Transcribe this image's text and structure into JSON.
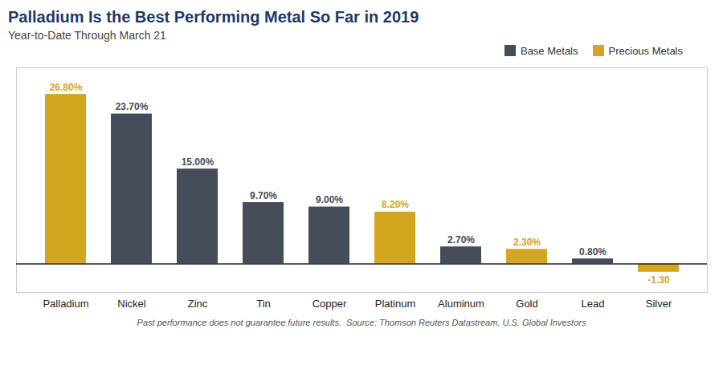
{
  "chart_data": {
    "type": "bar",
    "title": "Palladium Is the Best Performing Metal So Far in 2019",
    "subtitle": "Year-to-Date Through March 21",
    "categories": [
      "Palladium",
      "Nickel",
      "Zinc",
      "Tin",
      "Copper",
      "Platinum",
      "Aluminum",
      "Gold",
      "Lead",
      "Silver"
    ],
    "series": [
      {
        "name": "Base Metals",
        "color": "#464D5A",
        "values": [
          null,
          23.7,
          15.0,
          9.7,
          9.0,
          null,
          2.7,
          null,
          0.8,
          null
        ],
        "value_labels": [
          null,
          "23.70%",
          "15.00%",
          "9.70%",
          "9.00%",
          null,
          "2.70%",
          null,
          "0.80%",
          null
        ]
      },
      {
        "name": "Precious Metals",
        "color": "#D4A51E",
        "values": [
          26.8,
          null,
          null,
          null,
          null,
          8.2,
          null,
          2.3,
          null,
          -1.3
        ],
        "value_labels": [
          "26.80%",
          null,
          null,
          null,
          null,
          "8.20%",
          null,
          "2.30%",
          null,
          "-1.30"
        ]
      }
    ],
    "ylim": [
      -4.5,
      31
    ],
    "grid": false,
    "legend": "top",
    "data_labels": true,
    "tick_labels": "x",
    "annotations": [
      "Past performance does not guarantee future results.",
      "Source: Thomson Reuters Datastream, U.S. Global Investors"
    ]
  }
}
